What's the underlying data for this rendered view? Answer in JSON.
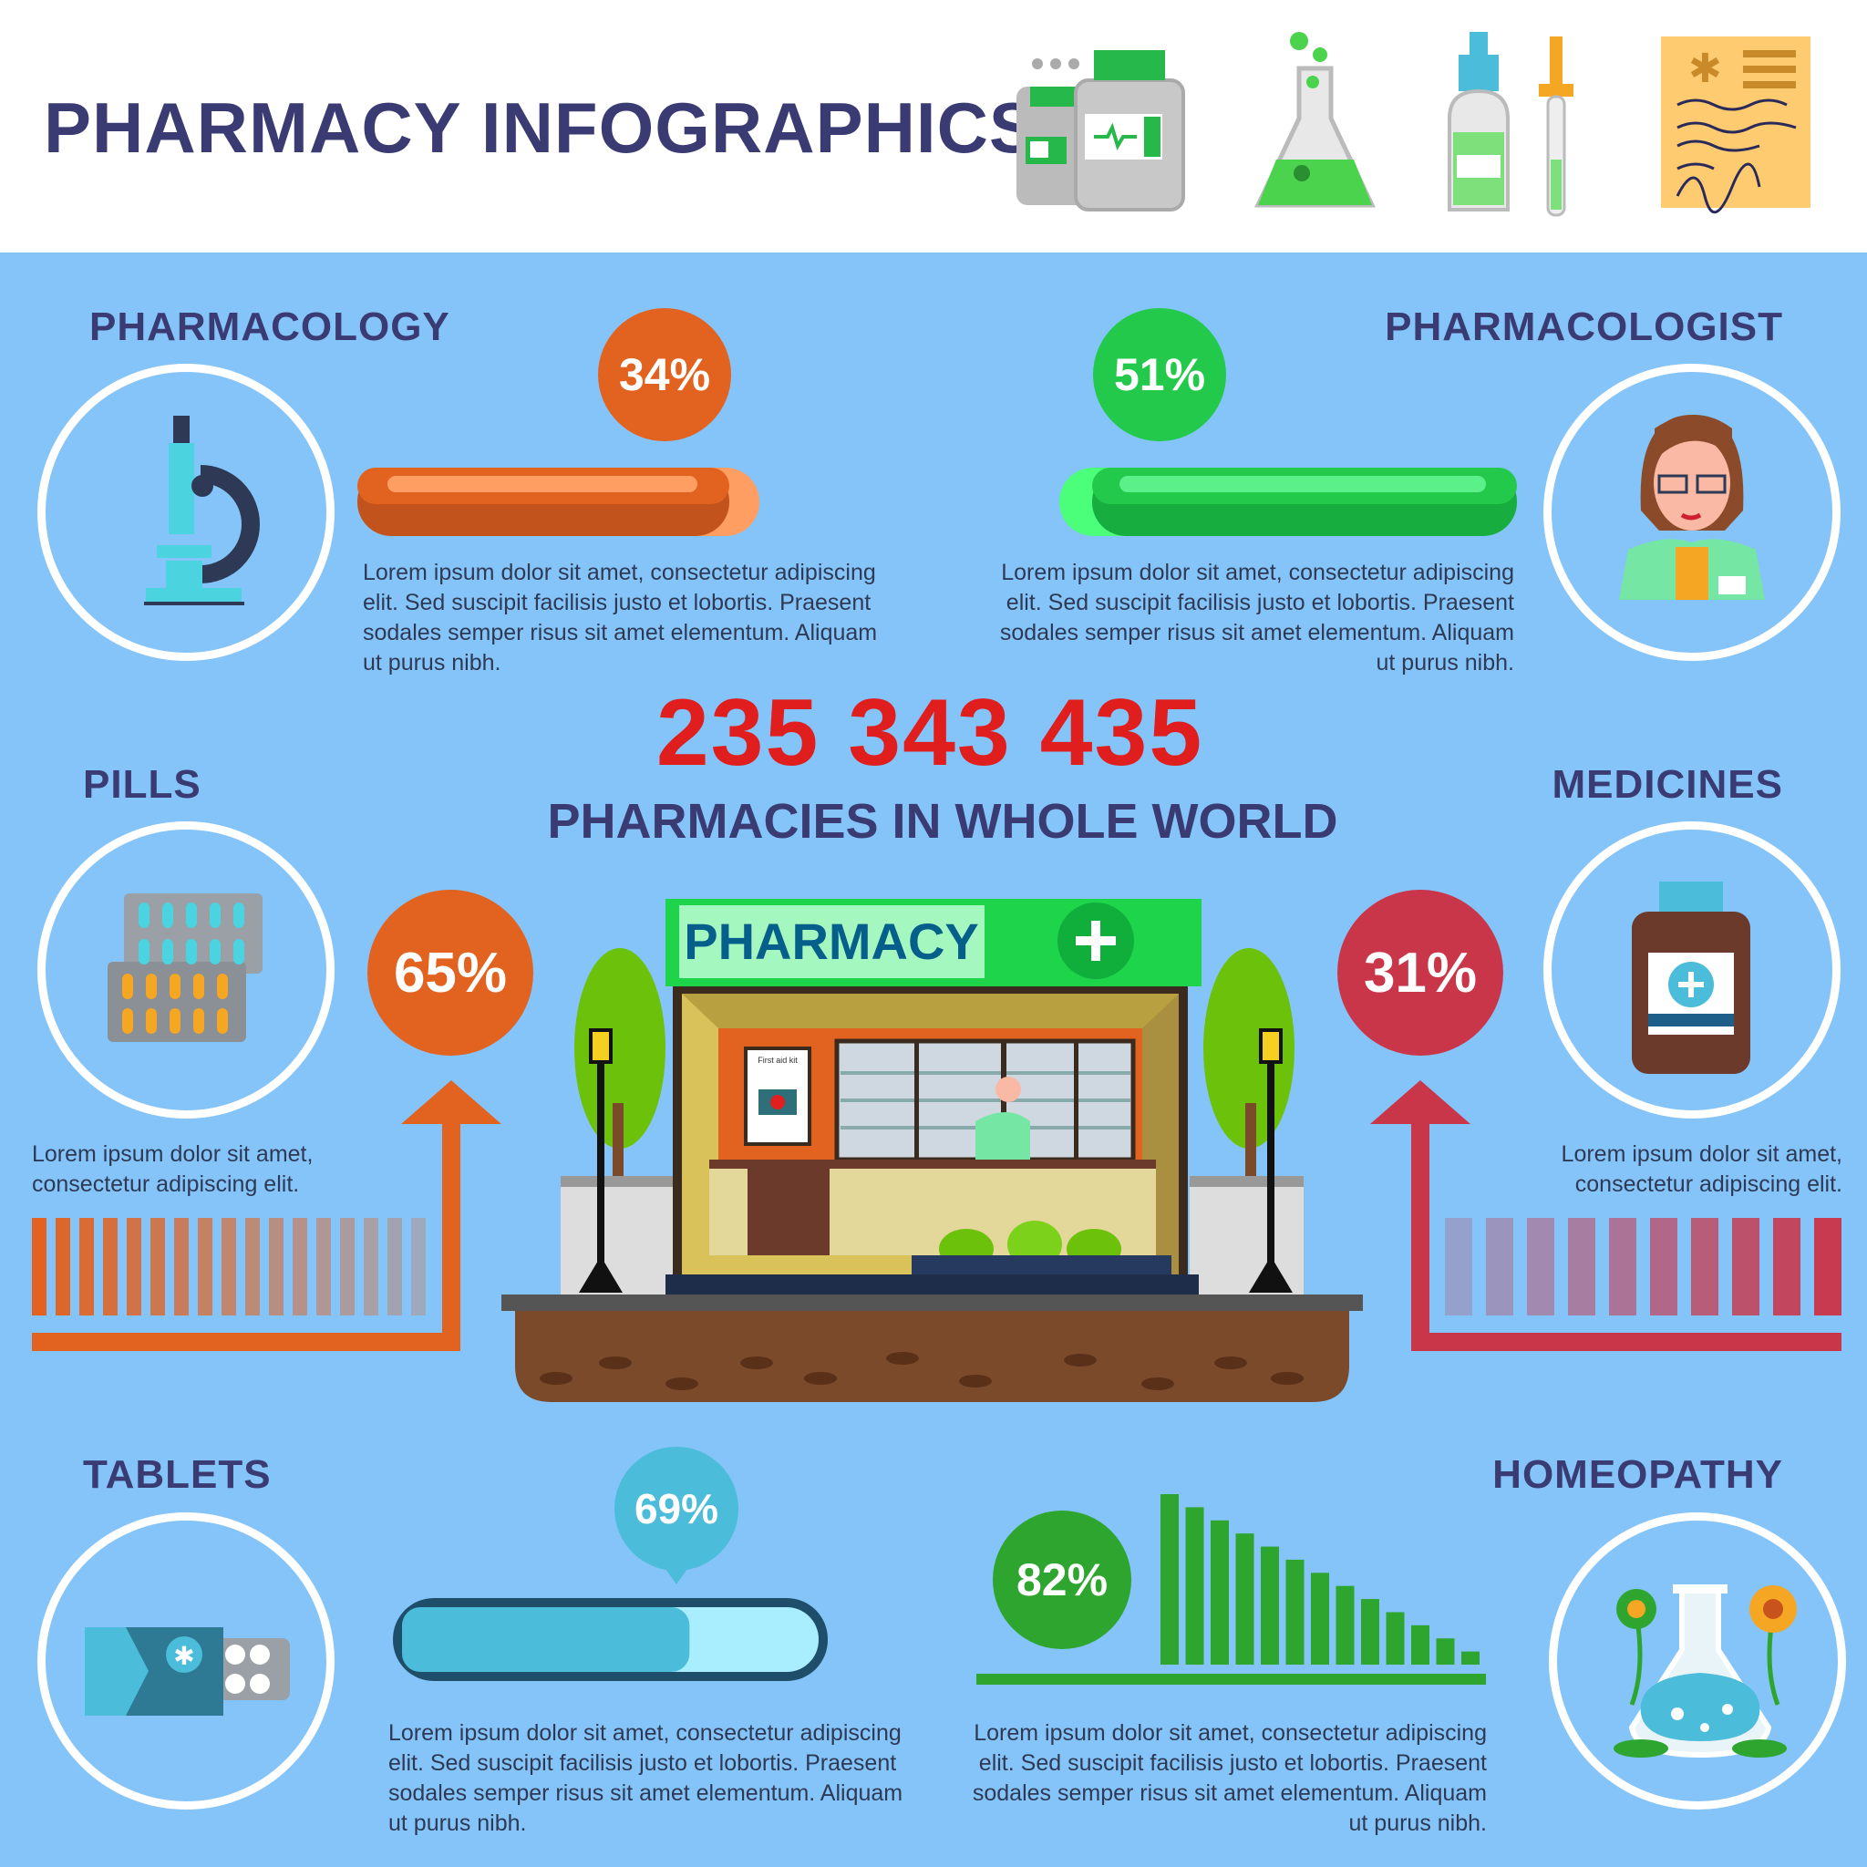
{
  "title": "PHARMACY INFOGRAPHICS",
  "header_icons": [
    "pill-bottles-icon",
    "flask-icon",
    "dropper-bottle-icon",
    "prescription-icon"
  ],
  "lorem_long": "Lorem ipsum dolor sit amet, consectetur adipiscing elit. Sed suscipit facilisis justo et lobortis. Praesent sodales semper risus sit amet elementum. Aliquam ut purus nibh.",
  "lorem_short": "Lorem ipsum dolor sit amet, consectetur adipiscing elit.",
  "sections": {
    "pharmacology": {
      "heading": "PHARMACOLOGY",
      "percent": "34%",
      "value": 34,
      "color": "#E2621F",
      "icon": "microscope-icon"
    },
    "pharmacologist": {
      "heading": "PHARMACOLOGIST",
      "percent": "51%",
      "value": 51,
      "color": "#22C94A",
      "icon": "pharmacist-icon"
    },
    "pills": {
      "heading": "PILLS",
      "percent": "65%",
      "value": 65,
      "color": "#E2621F",
      "icon": "pill-blister-icon"
    },
    "medicines": {
      "heading": "MEDICINES",
      "percent": "31%",
      "value": 31,
      "color": "#C9364A",
      "icon": "medicine-bottle-icon"
    },
    "tablets": {
      "heading": "TABLETS",
      "percent": "69%",
      "value": 69,
      "color": "#4BBCD9",
      "icon": "tablets-pack-icon"
    },
    "homeopathy": {
      "heading": "HOMEOPATHY",
      "percent": "82%",
      "value": 82,
      "color": "#2DA52F",
      "icon": "flask-flowers-icon"
    }
  },
  "center": {
    "number": "235 343 435",
    "subtitle": "PHARMACIES IN WHOLE WORLD",
    "sign": "PHARMACY",
    "poster": "First aid kit"
  }
}
